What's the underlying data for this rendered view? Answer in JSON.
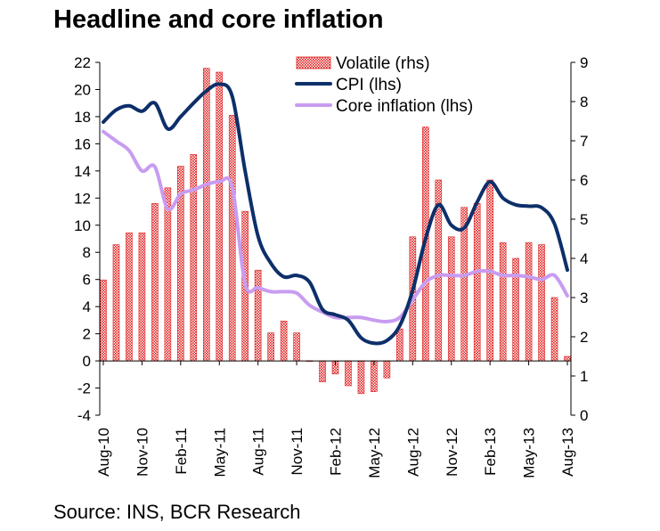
{
  "title": "Headline and core inflation",
  "source": "Source: INS, BCR Research",
  "colors": {
    "cpi": "#0d2f6a",
    "core": "#c89cf0",
    "volatile": "#e02020"
  },
  "chart_data": {
    "type": "bar",
    "title": "Headline and core inflation",
    "x_tick_labels": [
      "Aug-10",
      "Nov-10",
      "Feb-11",
      "May-11",
      "Aug-11",
      "Nov-11",
      "Feb-12",
      "May-12",
      "Aug-12",
      "Nov-12",
      "Feb-13",
      "May-13",
      "Aug-13"
    ],
    "categories": [
      "Aug-10",
      "Sep-10",
      "Oct-10",
      "Nov-10",
      "Dec-10",
      "Jan-11",
      "Feb-11",
      "Mar-11",
      "Apr-11",
      "May-11",
      "Jun-11",
      "Jul-11",
      "Aug-11",
      "Sep-11",
      "Oct-11",
      "Nov-11",
      "Dec-11",
      "Jan-12",
      "Feb-12",
      "Mar-12",
      "Apr-12",
      "May-12",
      "Jun-12",
      "Jul-12",
      "Aug-12",
      "Sep-12",
      "Oct-12",
      "Nov-12",
      "Dec-12",
      "Jan-13",
      "Feb-13",
      "Mar-13",
      "Apr-13",
      "May-13",
      "Jun-13",
      "Jul-13",
      "Aug-13"
    ],
    "y_left": {
      "label": "",
      "min": -4,
      "max": 22,
      "ticks": [
        -4,
        -2,
        0,
        2,
        4,
        6,
        8,
        10,
        12,
        14,
        16,
        18,
        20,
        22
      ]
    },
    "y_right": {
      "label": "",
      "min": 0,
      "max": 9,
      "ticks": [
        0,
        1,
        2,
        3,
        4,
        5,
        6,
        7,
        8,
        9
      ]
    },
    "legend_position": "top-center",
    "legend": [
      "Volatile (rhs)",
      "CPI (lhs)",
      "Core inflation (lhs)"
    ],
    "series": [
      {
        "name": "Volatile (rhs)",
        "type": "bar",
        "axis": "right",
        "values": [
          3.45,
          4.35,
          4.65,
          4.65,
          5.4,
          5.8,
          6.35,
          6.65,
          8.85,
          8.75,
          7.65,
          5.2,
          3.7,
          2.1,
          2.4,
          2.1,
          1.39,
          0.85,
          1.05,
          0.75,
          0.55,
          0.6,
          0.95,
          2.2,
          4.55,
          7.35,
          6.0,
          4.55,
          5.3,
          5.4,
          6.0,
          4.4,
          4.0,
          4.4,
          4.35,
          3.0,
          1.5
        ]
      },
      {
        "name": "CPI (lhs)",
        "type": "line",
        "axis": "left",
        "values": [
          17.6,
          18.5,
          18.8,
          18.4,
          19.0,
          17.1,
          18.0,
          19.0,
          19.9,
          20.4,
          19.5,
          14.0,
          9.2,
          7.2,
          6.2,
          6.3,
          5.8,
          3.8,
          3.4,
          3.0,
          1.7,
          1.3,
          1.5,
          2.6,
          5.2,
          9.0,
          11.5,
          10.0,
          9.8,
          11.7,
          13.2,
          12.0,
          11.5,
          11.4,
          11.3,
          10.1,
          6.7
        ]
      },
      {
        "name": "Core inflation (lhs)",
        "type": "line",
        "axis": "left",
        "values": [
          16.9,
          16.2,
          15.5,
          14.0,
          14.3,
          11.2,
          12.3,
          12.6,
          13.0,
          13.2,
          12.8,
          5.7,
          5.4,
          5.1,
          5.1,
          5.0,
          4.1,
          3.6,
          3.2,
          3.2,
          3.2,
          3.0,
          2.9,
          3.2,
          4.5,
          5.8,
          6.3,
          6.3,
          6.3,
          6.6,
          6.6,
          6.3,
          6.3,
          6.2,
          6.0,
          6.3,
          4.8
        ]
      }
    ]
  }
}
